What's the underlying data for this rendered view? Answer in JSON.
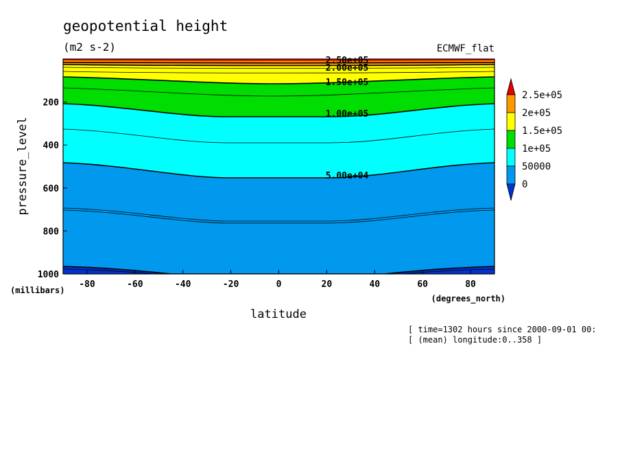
{
  "chart_data": {
    "type": "contour",
    "title": "geopotential height",
    "units": "(m2 s-2)",
    "source": "ECMWF_flat",
    "xlabel": "latitude",
    "ylabel": "pressure_level",
    "xunits": "(degrees_north)",
    "yunits": "(millibars)",
    "xlim": [
      -90,
      90
    ],
    "ylim": [
      1000,
      0
    ],
    "xticks": [
      -80,
      -60,
      -40,
      -20,
      0,
      20,
      40,
      60,
      80
    ],
    "yticks": [
      200,
      400,
      600,
      800,
      1000
    ],
    "levels": [
      0,
      50000,
      100000,
      150000,
      200000,
      250000
    ],
    "colorbar": {
      "labels": [
        "2.5e+05",
        "2e+05",
        "1.5e+05",
        "1e+05",
        "50000",
        "0"
      ],
      "colors": [
        "#e60000",
        "#ff9900",
        "#ffff00",
        "#00dd00",
        "#00ffff",
        "#0099ee",
        "#0033cc"
      ]
    },
    "contour_labels": [
      "2.50e+05",
      "2.00e+05",
      "1.50e+05",
      "1.00e+05",
      "5.00e+04"
    ],
    "notes": [
      "[ time=1302 hours since 2000-09-01 00:",
      "[ (mean) longitude:0..358 ]"
    ]
  }
}
